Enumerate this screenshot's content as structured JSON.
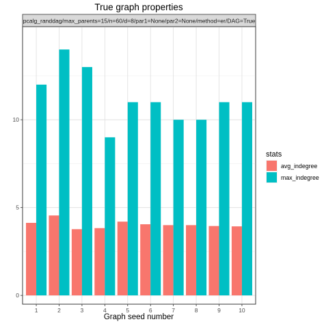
{
  "chart_data": {
    "type": "bar",
    "title": "True graph properties",
    "facet_label": "pcalg_randdag/max_parents=15/n=60/d=8/par1=None/par2=None/method=er/DAG=True",
    "xlabel": "Graph seed number",
    "ylabel": "",
    "categories": [
      "1",
      "2",
      "3",
      "4",
      "5",
      "6",
      "7",
      "8",
      "9",
      "10"
    ],
    "y_ticks": [
      0,
      5,
      10
    ],
    "ylim": [
      -0.5,
      15.3
    ],
    "grid": true,
    "legend": {
      "title": "stats",
      "placement": "right"
    },
    "series": [
      {
        "name": "avg_indegree",
        "color": "#F8766D",
        "values": [
          4.13,
          4.55,
          3.77,
          3.83,
          4.2,
          4.05,
          4.0,
          4.0,
          3.95,
          3.93
        ]
      },
      {
        "name": "max_indegree",
        "color": "#00BFC4",
        "values": [
          12,
          14,
          13,
          9,
          11,
          11,
          10,
          10,
          11,
          11
        ]
      }
    ]
  }
}
